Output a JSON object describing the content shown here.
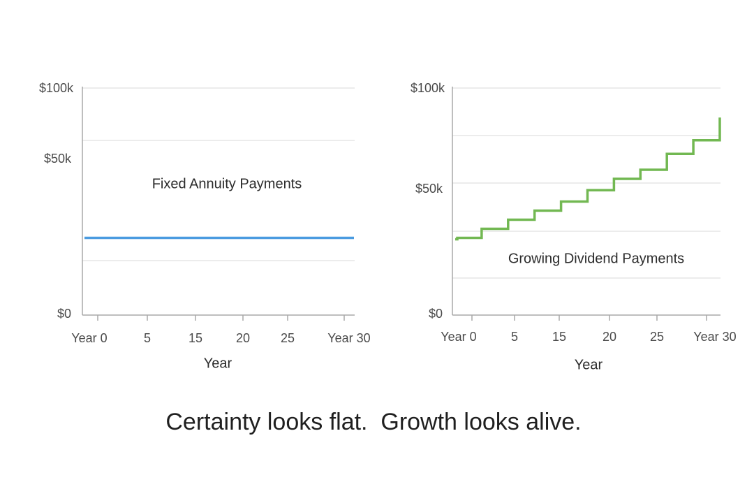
{
  "caption": "Certainty looks flat.  Growth looks alive.",
  "chart_data": [
    {
      "type": "line",
      "xlabel": "Year",
      "ylabel": "",
      "x_tick_labels": [
        "Year 0",
        "5",
        "15",
        "20",
        "25",
        "Year 30"
      ],
      "y_tick_labels": [
        "$100k",
        "$50k",
        "$0"
      ],
      "ylim": [
        0,
        100
      ],
      "grid": true,
      "series": [
        {
          "name": "Fixed Annuity Payments",
          "color": "#4a9be0",
          "step": false,
          "x": [
            0,
            30
          ],
          "y": [
            34,
            34
          ]
        }
      ]
    },
    {
      "type": "line",
      "xlabel": "Year",
      "ylabel": "",
      "x_tick_labels": [
        "Year 0",
        "5",
        "15",
        "20",
        "25",
        "Year 30"
      ],
      "y_tick_labels": [
        "$100k",
        "$50k",
        "$0"
      ],
      "ylim": [
        0,
        100
      ],
      "grid": true,
      "series": [
        {
          "name": "Growing Dividend Payments",
          "color": "#72b852",
          "step": true,
          "x": [
            0,
            3,
            6,
            9,
            12,
            15,
            18,
            21,
            24,
            27,
            30
          ],
          "y": [
            34,
            38,
            42,
            46,
            50,
            55,
            60,
            64,
            71,
            77,
            87
          ]
        }
      ]
    }
  ]
}
